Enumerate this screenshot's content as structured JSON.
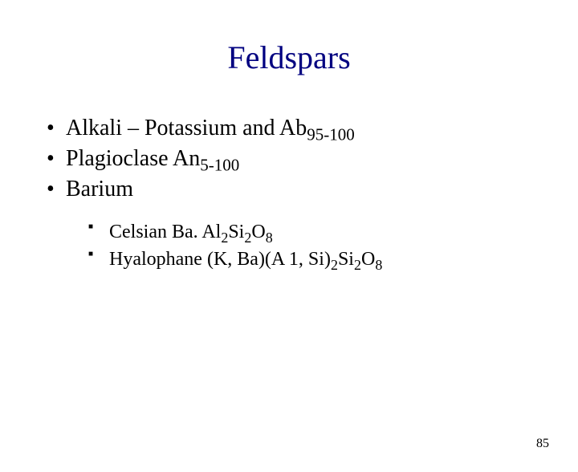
{
  "title": {
    "text": "Feldspars",
    "color": "#000080",
    "fontsize": 40
  },
  "bullets": {
    "fontsize": 28,
    "color": "#000000",
    "sub_fontsize": 0.75,
    "items": [
      {
        "pre": "Alkali – Potassium and Ab",
        "sub": "95-100",
        "post": ""
      },
      {
        "pre": "Plagioclase An",
        "sub": "5-100",
        "post": ""
      },
      {
        "pre": "Barium",
        "sub": "",
        "post": ""
      }
    ]
  },
  "subbullets": {
    "fontsize": 24,
    "color": "#000000",
    "items": [
      {
        "runs": [
          {
            "t": "Celsian  Ba. Al"
          },
          {
            "t": "2",
            "sub": true
          },
          {
            "t": "Si"
          },
          {
            "t": "2",
            "sub": true
          },
          {
            "t": "O"
          },
          {
            "t": "8",
            "sub": true
          }
        ]
      },
      {
        "runs": [
          {
            "t": "Hyalophane (K, Ba)(A 1, Si)"
          },
          {
            "t": "2",
            "sub": true
          },
          {
            "t": "Si"
          },
          {
            "t": "2",
            "sub": true
          },
          {
            "t": "O"
          },
          {
            "t": "8",
            "sub": true
          }
        ]
      }
    ]
  },
  "page_number": {
    "text": "85",
    "fontsize": 16,
    "color": "#000000"
  }
}
